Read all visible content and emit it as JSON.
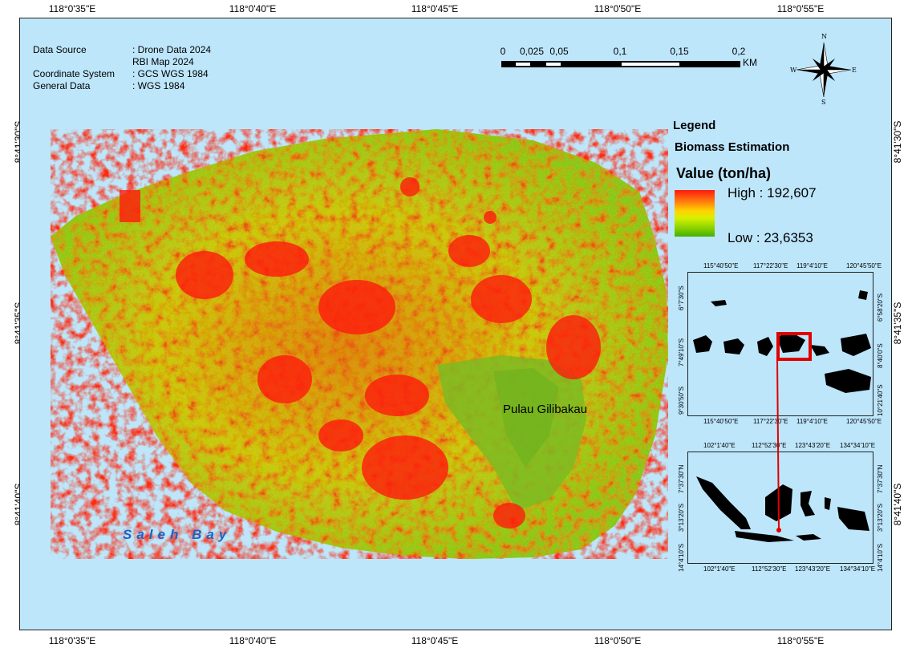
{
  "grid": {
    "top_lon": [
      "118°0'35\"E",
      "118°0'40\"E",
      "118°0'45\"E",
      "118°0'50\"E",
      "118°0'55\"E"
    ],
    "bottom_lon": [
      "118°0'35\"E",
      "118°0'40\"E",
      "118°0'45\"E",
      "118°0'50\"E",
      "118°0'55\"E"
    ],
    "left_lat": [
      "8°41'30\"S",
      "8°41'35\"S",
      "8°41'40\"S"
    ],
    "right_lat": [
      "8°41'30\"S",
      "8°41'35\"S",
      "8°41'40\"S"
    ]
  },
  "info": {
    "data_source_key": "Data Source",
    "data_source_val1": ": Drone Data 2024",
    "data_source_val2": "RBI Map 2024",
    "coord_key": "Coordinate System",
    "coord_val": ": GCS WGS 1984",
    "general_key": "General Data",
    "general_val": ": WGS 1984"
  },
  "scale": {
    "labels": [
      "0",
      "0,025",
      "0,05",
      "0,1",
      "0,15",
      "0,2"
    ],
    "unit": "KM"
  },
  "compass": {
    "n": "N",
    "s": "S",
    "e": "E",
    "w": "W"
  },
  "legend": {
    "title": "Legend",
    "subtitle": "Biomass Estimation",
    "value_label": "Value (ton/ha)",
    "high": "High : 192,607",
    "low": "Low : 23,6353",
    "ramp_colors": [
      "#ff1a0d",
      "#ffd400",
      "#44b000"
    ]
  },
  "labels": {
    "island": "Pulau Gilibakau",
    "bay": "Saleh Bay"
  },
  "inset1": {
    "top": [
      "115°40'50\"E",
      "117°22'30\"E",
      "119°4'10\"E",
      "120°45'50\"E"
    ],
    "bottom": [
      "115°40'50\"E",
      "117°22'30\"E",
      "119°4'10\"E",
      "120°45'50\"E"
    ],
    "left": [
      "6°7'30\"S",
      "7°49'10\"S",
      "9°30'50\"S"
    ],
    "right": [
      "6°58'20\"S",
      "8°40'0\"S",
      "10°21'40\"S"
    ]
  },
  "inset2": {
    "top": [
      "102°1'40\"E",
      "112°52'30\"E",
      "123°43'20\"E",
      "134°34'10\"E"
    ],
    "bottom": [
      "102°1'40\"E",
      "112°52'30\"E",
      "123°43'20\"E",
      "134°34'10\"E"
    ],
    "left": [
      "7°37'30\"N",
      "3°13'20\"S",
      "14°4'10\"S"
    ],
    "right": [
      "7°37'30\"N",
      "3°13'20\"S",
      "14°4'10\"S"
    ]
  },
  "colors": {
    "water": "#bde6fb",
    "high": "#ff1a0d",
    "mid": "#ffd400",
    "low": "#44b000",
    "bay_text": "#1b63c6",
    "locator": "#e00000"
  }
}
